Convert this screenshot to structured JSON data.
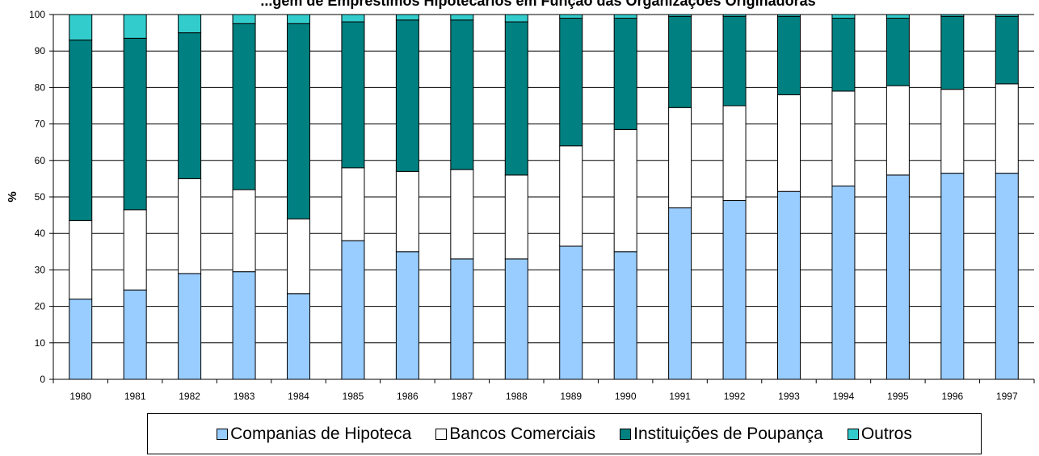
{
  "chart_data": {
    "type": "bar",
    "stacked": true,
    "title": "...gem de Empréstimos Hipotecários em Função das Organizações Originadoras",
    "xlabel": "",
    "ylabel": "%",
    "ylim": [
      0,
      100
    ],
    "yticks": [
      "0",
      "10",
      "20",
      "30",
      "40",
      "50",
      "60",
      "70",
      "80",
      "90",
      "100"
    ],
    "grid": true,
    "legend_position": "bottom",
    "categories": [
      "1980",
      "1981",
      "1982",
      "1983",
      "1984",
      "1985",
      "1986",
      "1987",
      "1988",
      "1989",
      "1990",
      "1991",
      "1992",
      "1993",
      "1994",
      "1995",
      "1996",
      "1997"
    ],
    "series": [
      {
        "name": "Companias de Hipoteca",
        "color": "#99ccff",
        "values": [
          22,
          24.5,
          29,
          29.5,
          23.5,
          38,
          35,
          33,
          33,
          36.5,
          35,
          47,
          49,
          51.5,
          53,
          56,
          56.5,
          56.5
        ]
      },
      {
        "name": "Bancos Comerciais",
        "color": "#ffffff",
        "values": [
          21.5,
          22,
          26,
          22.5,
          20.5,
          20,
          22,
          24.5,
          23,
          27.5,
          33.5,
          27.5,
          26,
          26.5,
          26,
          24.5,
          23,
          24.5
        ]
      },
      {
        "name": "Instituições de Poupança",
        "color": "#008080",
        "values": [
          49.5,
          47,
          40,
          45.5,
          53.5,
          40,
          41.5,
          41,
          42,
          35,
          30.5,
          25,
          24.5,
          21.5,
          20,
          18.5,
          20,
          18.5
        ]
      },
      {
        "name": "Outros",
        "color": "#33cccc",
        "values": [
          7,
          6.5,
          5,
          2.5,
          2.5,
          2,
          1.5,
          1.5,
          2,
          1,
          1,
          0.5,
          0.5,
          0.5,
          1,
          1,
          0.5,
          0.5
        ]
      }
    ]
  }
}
